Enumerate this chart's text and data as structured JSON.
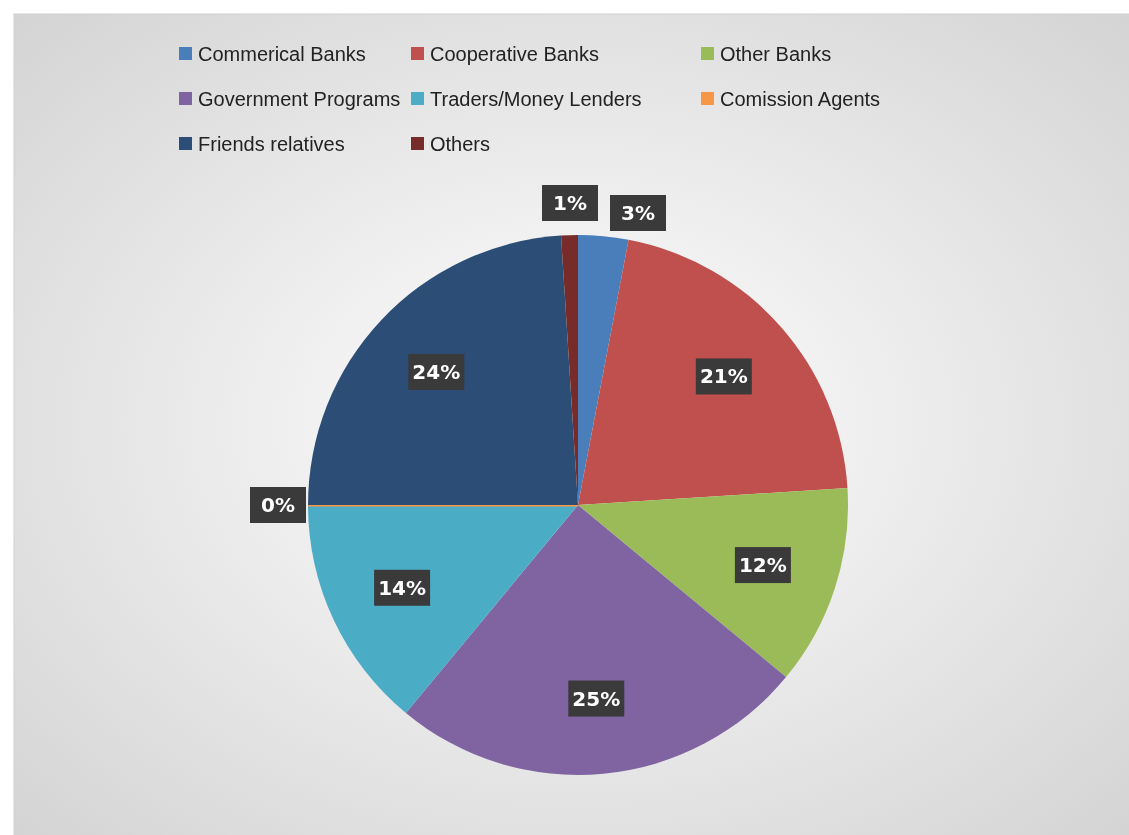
{
  "chart_data": {
    "type": "pie",
    "categories": [
      "Commerical Banks",
      "Cooperative Banks",
      "Other Banks",
      "Government Programs",
      "Traders/Money Lenders",
      "Comission Agents",
      "Friends relatives",
      "Others"
    ],
    "values": [
      3,
      21,
      12,
      25,
      14,
      0,
      24,
      1
    ],
    "colors": [
      "#4a7ebb",
      "#c0504d",
      "#9bbb59",
      "#8064a2",
      "#4bacc6",
      "#f79646",
      "#2c4d75",
      "#772c2a"
    ],
    "value_labels": [
      "3%",
      "21%",
      "12%",
      "25%",
      "14%",
      "0%",
      "24%",
      "1%"
    ],
    "legend": "top"
  }
}
